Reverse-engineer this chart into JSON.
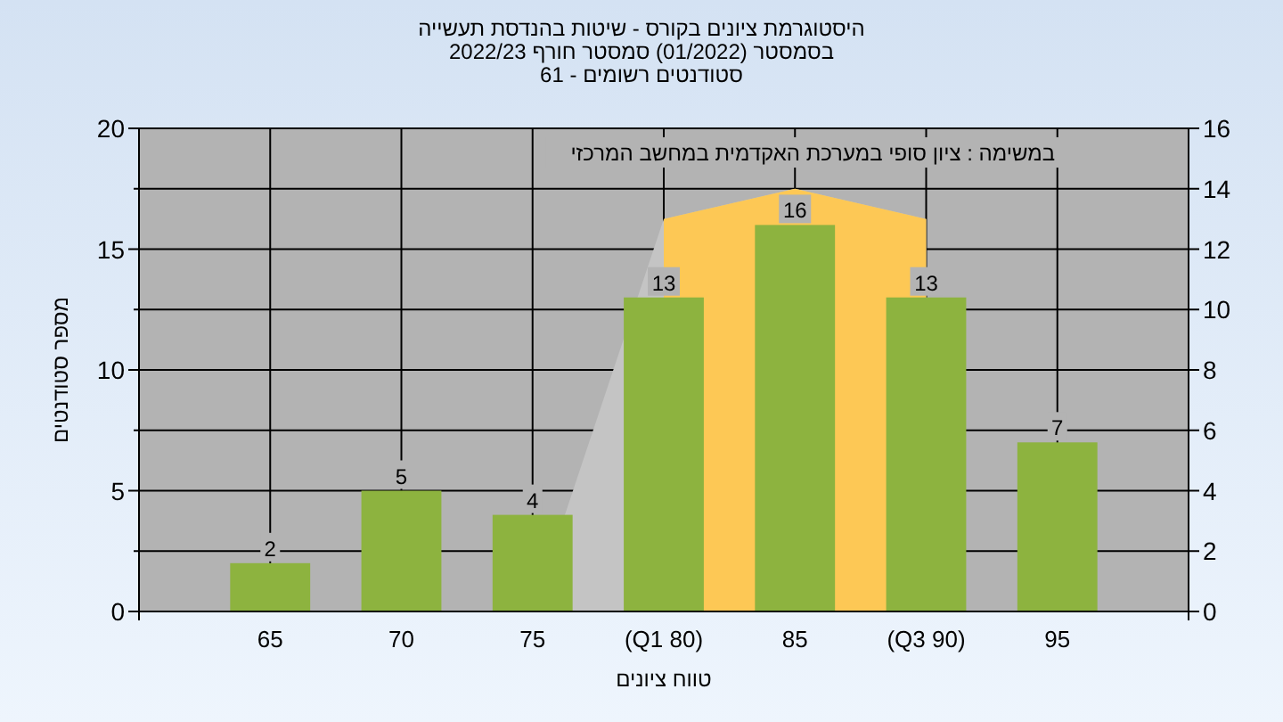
{
  "chart_data": {
    "type": "bar",
    "title": "היסטוגרמת ציונים בקורס - שיטות בהנדסת תעשייה",
    "subtitle": "בסמסטר  (01/2022)  סמסטר חורף 2022/23\nסטודנטים רשומים - 61",
    "xlabel": "טווח ציונים",
    "ylabel": "מספר סטודנטים",
    "annotations": [
      "במשימה : ציון סופי במערכת האקדמית במחשב המרכזי"
    ],
    "categories": [
      "65",
      "70",
      "75",
      "(Q1 80)",
      "85",
      "(Q3 90)",
      "95"
    ],
    "series": [
      {
        "type": "area",
        "axis": "y2",
        "color": "#c4c4c4",
        "values": [
          null,
          null,
          0,
          13,
          14,
          13,
          null
        ]
      },
      {
        "type": "area",
        "axis": "y2",
        "color": "#fdc855",
        "values": [
          null,
          null,
          null,
          13,
          14,
          13,
          null
        ]
      },
      {
        "color": "#8db33f",
        "values": [
          2,
          5,
          4,
          13,
          16,
          13,
          7
        ],
        "value_labels": [
          "2",
          "5",
          "4",
          "13",
          "16",
          "13",
          "7"
        ]
      }
    ],
    "ylim": [
      0,
      20
    ],
    "yticks": [
      0,
      {
        "value": 2.5,
        "label": null
      },
      5,
      {
        "value": 7.5,
        "label": null
      },
      10,
      {
        "value": 12.5,
        "label": null
      },
      15,
      {
        "value": 17.5,
        "label": null
      },
      20
    ],
    "y2lim": [
      0,
      16
    ],
    "y2ticks": [
      0,
      2,
      4,
      6,
      8,
      10,
      12,
      14,
      16
    ],
    "grid": true
  }
}
